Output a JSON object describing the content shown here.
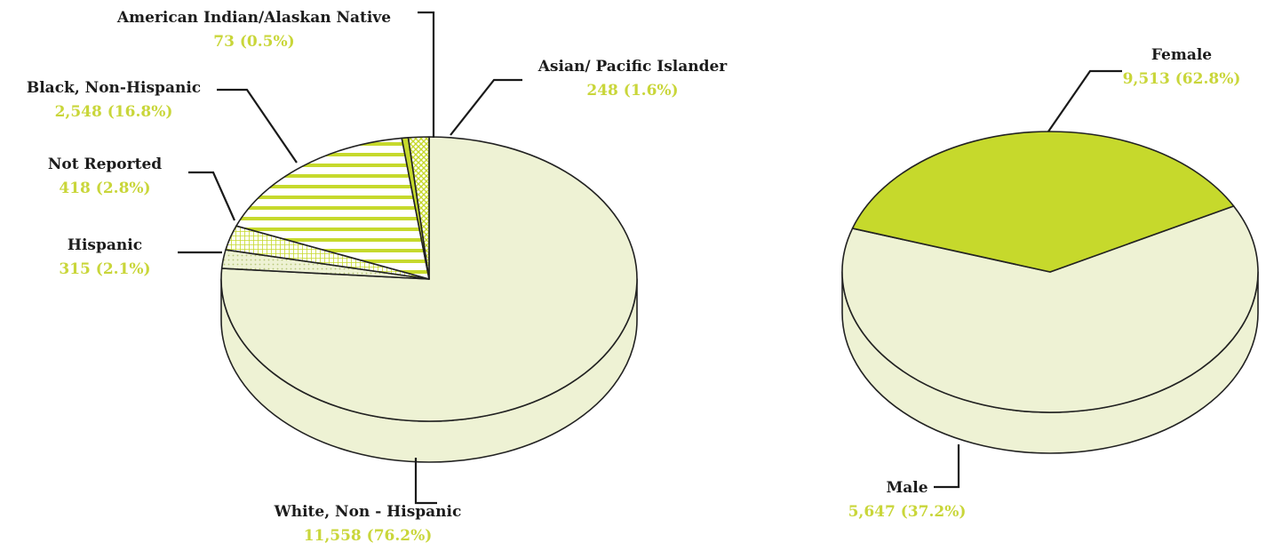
{
  "colors": {
    "light": "#eef2d4",
    "accent": "#c6d92c",
    "label_value": "#c9d63a",
    "outline": "#222222"
  },
  "chart_data": [
    {
      "type": "pie",
      "style": "3d",
      "slices": [
        {
          "label": "White, Non - Hispanic",
          "count": 11558,
          "percent": 76.2,
          "value_text": "11,558 (76.2%)",
          "fill": "light"
        },
        {
          "label": "Hispanic",
          "count": 315,
          "percent": 2.1,
          "value_text": "315 (2.1%)",
          "fill": "light-dots"
        },
        {
          "label": "Not Reported",
          "count": 418,
          "percent": 2.8,
          "value_text": "418 (2.8%)",
          "fill": "grid"
        },
        {
          "label": "Black, Non-Hispanic",
          "count": 2548,
          "percent": 16.8,
          "value_text": "2,548 (16.8%)",
          "fill": "horizontal-stripes"
        },
        {
          "label": "American Indian/Alaskan Native",
          "count": 73,
          "percent": 0.5,
          "value_text": "73 (0.5%)",
          "fill": "accent"
        },
        {
          "label": "Asian/ Pacific Islander",
          "count": 248,
          "percent": 1.6,
          "value_text": "248 (1.6%)",
          "fill": "crosshatch"
        }
      ]
    },
    {
      "type": "pie",
      "style": "3d",
      "slices": [
        {
          "label": "Female",
          "count": 9513,
          "percent": 62.8,
          "value_text": "9,513 (62.8%)",
          "fill": "light"
        },
        {
          "label": "Male",
          "count": 5647,
          "percent": 37.2,
          "value_text": "5,647 (37.2%)",
          "fill": "accent"
        }
      ]
    }
  ]
}
